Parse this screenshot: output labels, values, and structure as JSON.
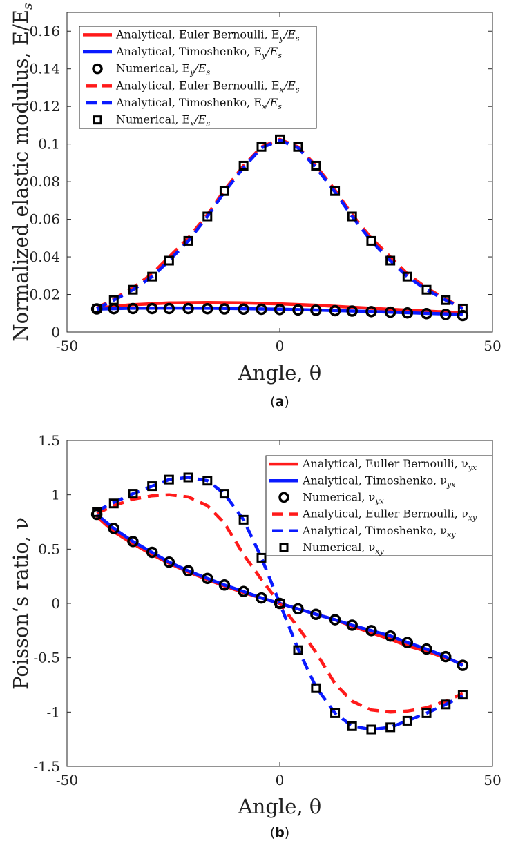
{
  "chart_data": [
    {
      "type": "line",
      "caption": "(a)",
      "xlabel": "Angle, θ",
      "ylabel": "Normalized elastic modulus, E/E",
      "ylabel_sub": "s",
      "xlim": [
        -50,
        50
      ],
      "ylim": [
        0,
        0.17
      ],
      "xticks": [
        -50,
        0,
        50
      ],
      "xtick_labels": [
        "-50",
        "0",
        "50"
      ],
      "yticks": [
        0,
        0.02,
        0.04,
        0.06,
        0.08,
        0.1,
        0.12,
        0.14,
        0.16
      ],
      "ytick_labels": [
        "0",
        "0.02",
        "0.04",
        "0.06",
        "0.08",
        "0.1",
        "0.12",
        "0.14",
        "0.16"
      ],
      "legend_position": "top-left",
      "series": [
        {
          "name": "Analytical, Euler Bernoulli, E",
          "name_sub": "y",
          "name_tail": "/E",
          "name_tail_sub": "s",
          "style": "solid",
          "color": "#ff1a1a",
          "x": [
            -43,
            -35,
            -26,
            -17,
            -9,
            0,
            9,
            17,
            26,
            35,
            43
          ],
          "y": [
            0.0128,
            0.0145,
            0.0155,
            0.0157,
            0.0155,
            0.015,
            0.0142,
            0.0132,
            0.0121,
            0.0111,
            0.0103
          ]
        },
        {
          "name": "Analytical, Timoshenko, E",
          "name_sub": "y",
          "name_tail": "/E",
          "name_tail_sub": "s",
          "style": "solid",
          "color": "#0a1aff",
          "x": [
            -43,
            -35,
            -26,
            -17,
            -9,
            0,
            9,
            17,
            26,
            35,
            43
          ],
          "y": [
            0.0122,
            0.0127,
            0.0128,
            0.0127,
            0.0125,
            0.0122,
            0.0117,
            0.0112,
            0.0106,
            0.0099,
            0.0094
          ]
        },
        {
          "name": "Numerical, E",
          "name_sub": "y",
          "name_tail": "/E",
          "name_tail_sub": "s",
          "style": "circle",
          "color": "#000000",
          "x": [
            -43,
            -39,
            -34.5,
            -30,
            -26,
            -21.5,
            -17,
            -13,
            -8.5,
            -4.3,
            0,
            4.3,
            8.5,
            13,
            17,
            21.5,
            26,
            30,
            34.5,
            39,
            43
          ],
          "y": [
            0.0123,
            0.0124,
            0.0125,
            0.0125,
            0.0125,
            0.0125,
            0.0124,
            0.0123,
            0.0122,
            0.0121,
            0.012,
            0.0118,
            0.0116,
            0.0114,
            0.0112,
            0.0109,
            0.0106,
            0.0102,
            0.0098,
            0.0094,
            0.0088
          ]
        },
        {
          "name": "Analytical, Euler Bernoulli, E",
          "name_sub": "x",
          "name_tail": "/E",
          "name_tail_sub": "s",
          "style": "dashed",
          "color": "#ff1a1a",
          "x": [
            -43,
            -39,
            -34.5,
            -30,
            -26,
            -21.5,
            -17,
            -13,
            -8.5,
            -4.3,
            0,
            4.3,
            8.5,
            13,
            17,
            21.5,
            26,
            30,
            34.5,
            39,
            43
          ],
          "y": [
            0.0128,
            0.0175,
            0.0235,
            0.031,
            0.04,
            0.05,
            0.0625,
            0.0755,
            0.0885,
            0.0985,
            0.1025,
            0.0985,
            0.0885,
            0.0755,
            0.0625,
            0.05,
            0.04,
            0.031,
            0.0235,
            0.0175,
            0.0128
          ]
        },
        {
          "name": "Analytical, Timoshenko, E",
          "name_sub": "x",
          "name_tail": "/E",
          "name_tail_sub": "s",
          "style": "dashed",
          "color": "#0a1aff",
          "x": [
            -43,
            -39,
            -34.5,
            -30,
            -26,
            -21.5,
            -17,
            -13,
            -8.5,
            -4.3,
            0,
            4.3,
            8.5,
            13,
            17,
            21.5,
            26,
            30,
            34.5,
            39,
            43
          ],
          "y": [
            0.0125,
            0.017,
            0.0225,
            0.0295,
            0.038,
            0.0485,
            0.0615,
            0.0745,
            0.0875,
            0.098,
            0.102,
            0.098,
            0.0875,
            0.0745,
            0.0615,
            0.0485,
            0.038,
            0.0295,
            0.0225,
            0.017,
            0.0125
          ]
        },
        {
          "name": "Numerical, E",
          "name_sub": "x",
          "name_tail": "/E",
          "name_tail_sub": "s",
          "style": "square",
          "color": "#000000",
          "x": [
            -43,
            -39,
            -34.5,
            -30,
            -26,
            -21.5,
            -17,
            -13,
            -8.5,
            -4.3,
            0,
            4.3,
            8.5,
            13,
            17,
            21.5,
            26,
            30,
            34.5,
            39,
            43
          ],
          "y": [
            0.0125,
            0.017,
            0.0225,
            0.0295,
            0.038,
            0.0485,
            0.0615,
            0.075,
            0.0885,
            0.0985,
            0.1025,
            0.0985,
            0.0885,
            0.075,
            0.0615,
            0.0485,
            0.038,
            0.0295,
            0.0225,
            0.017,
            0.0125
          ]
        }
      ]
    },
    {
      "type": "line",
      "caption": "(b)",
      "xlabel": "Angle, θ",
      "ylabel": "Poisson‘s ratio, ν",
      "xlim": [
        -50,
        50
      ],
      "ylim": [
        -1.5,
        1.5
      ],
      "xticks": [
        -50,
        0,
        50
      ],
      "xtick_labels": [
        "-50",
        "0",
        "50"
      ],
      "yticks": [
        -1.5,
        -1,
        -0.5,
        0,
        0.5,
        1,
        1.5
      ],
      "ytick_labels": [
        "-1.5",
        "-1",
        "-0.5",
        "0",
        "0.5",
        "1",
        "1.5"
      ],
      "legend_position": "top-right",
      "series": [
        {
          "name": "Analytical, Euller Bernoulli, ν",
          "name_sub": "yx",
          "style": "solid",
          "color": "#ff1a1a",
          "x": [
            -43,
            -39,
            -34.5,
            -30,
            -26,
            -21.5,
            -17,
            -13,
            -8.5,
            -4.3,
            0,
            4.3,
            8.5,
            13,
            17,
            21.5,
            26,
            30,
            34.5,
            39,
            43
          ],
          "y": [
            0.8,
            0.66,
            0.55,
            0.45,
            0.37,
            0.29,
            0.22,
            0.16,
            0.1,
            0.05,
            0.0,
            -0.05,
            -0.1,
            -0.15,
            -0.21,
            -0.27,
            -0.33,
            -0.39,
            -0.44,
            -0.5,
            -0.56
          ]
        },
        {
          "name": "Analytical, Timoshenko, ν",
          "name_sub": "yx",
          "style": "solid",
          "color": "#0a1aff",
          "x": [
            -43,
            -39,
            -34.5,
            -30,
            -26,
            -21.5,
            -17,
            -13,
            -8.5,
            -4.3,
            0,
            4.3,
            8.5,
            13,
            17,
            21.5,
            26,
            30,
            34.5,
            39,
            43
          ],
          "y": [
            0.82,
            0.69,
            0.57,
            0.47,
            0.38,
            0.3,
            0.23,
            0.17,
            0.11,
            0.05,
            0.0,
            -0.05,
            -0.1,
            -0.15,
            -0.2,
            -0.25,
            -0.3,
            -0.36,
            -0.42,
            -0.49,
            -0.57
          ]
        },
        {
          "name": "Numerical, ν",
          "name_sub": "yx",
          "style": "circle",
          "color": "#000000",
          "x": [
            -43,
            -39,
            -34.5,
            -30,
            -26,
            -21.5,
            -17,
            -13,
            -8.5,
            -4.3,
            0,
            4.3,
            8.5,
            13,
            17,
            21.5,
            26,
            30,
            34.5,
            39,
            43
          ],
          "y": [
            0.82,
            0.69,
            0.57,
            0.47,
            0.38,
            0.3,
            0.23,
            0.17,
            0.11,
            0.05,
            0.0,
            -0.05,
            -0.1,
            -0.15,
            -0.2,
            -0.25,
            -0.3,
            -0.36,
            -0.42,
            -0.49,
            -0.57
          ]
        },
        {
          "name": "Analytical, Euller Bernoulli, ν",
          "name_sub": "xy",
          "style": "dashed",
          "color": "#ff1a1a",
          "x": [
            -43,
            -39,
            -34.5,
            -30,
            -26,
            -21.5,
            -17,
            -13,
            -8.5,
            -4.3,
            0,
            4.3,
            8.5,
            13,
            17,
            21.5,
            26,
            30,
            34.5,
            39,
            43
          ],
          "y": [
            0.83,
            0.9,
            0.96,
            0.99,
            1.0,
            0.98,
            0.9,
            0.74,
            0.45,
            0.22,
            0.0,
            -0.22,
            -0.45,
            -0.74,
            -0.9,
            -0.98,
            -1.0,
            -0.99,
            -0.96,
            -0.9,
            -0.83
          ]
        },
        {
          "name": "Analytical, Timoshenko, ν",
          "name_sub": "xy",
          "style": "dashed",
          "color": "#0a1aff",
          "x": [
            -43,
            -39,
            -34.5,
            -30,
            -26,
            -21.5,
            -17,
            -13,
            -8.5,
            -4.3,
            0,
            4.3,
            8.5,
            13,
            17,
            21.5,
            26,
            30,
            34.5,
            39,
            43
          ],
          "y": [
            0.85,
            0.93,
            1.01,
            1.08,
            1.14,
            1.16,
            1.13,
            1.01,
            0.77,
            0.42,
            0.0,
            -0.42,
            -0.77,
            -1.01,
            -1.13,
            -1.16,
            -1.14,
            -1.08,
            -1.01,
            -0.93,
            -0.85
          ]
        },
        {
          "name": "Numerical, ν",
          "name_sub": "xy",
          "style": "square",
          "color": "#000000",
          "x": [
            -43,
            -39,
            -34.5,
            -30,
            -26,
            -21.5,
            -17,
            -13,
            -8.5,
            -4.3,
            0,
            4.3,
            8.5,
            13,
            17,
            21.5,
            26,
            30,
            34.5,
            39,
            43
          ],
          "y": [
            0.84,
            0.92,
            1.01,
            1.08,
            1.14,
            1.16,
            1.13,
            1.01,
            0.77,
            0.42,
            0.0,
            -0.43,
            -0.78,
            -1.01,
            -1.13,
            -1.16,
            -1.14,
            -1.08,
            -1.01,
            -0.93,
            -0.84
          ]
        }
      ]
    }
  ]
}
